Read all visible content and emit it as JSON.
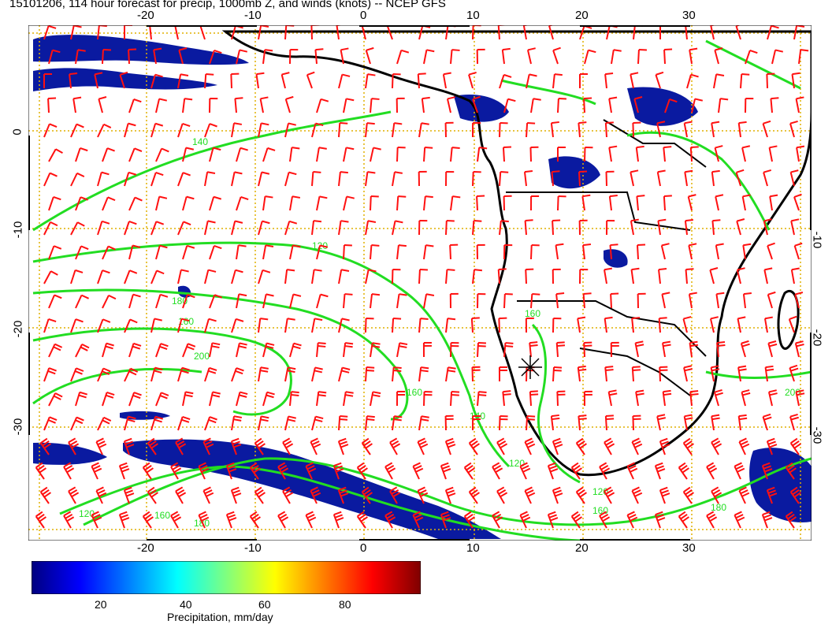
{
  "title": "15101206, 114 hour forecast for precip, 1000mb Z, and winds (knots) -- NCEP GFS",
  "map": {
    "lon_range": [
      -30,
      42
    ],
    "lat_range": [
      -40,
      10
    ],
    "top_ticks": [
      "-20",
      "-10",
      "0",
      "10",
      "20",
      "30"
    ],
    "bottom_ticks": [
      "-20",
      "-10",
      "0",
      "10",
      "20",
      "30"
    ],
    "left_ticks": [
      "0",
      "-10",
      "-20",
      "-30"
    ],
    "right_ticks": [
      "-10",
      "-20",
      "-30"
    ],
    "contour_labels": [
      "120",
      "140",
      "160",
      "180",
      "200",
      "160",
      "140",
      "120",
      "180",
      "160",
      "120",
      "160",
      "180",
      "200",
      "120",
      "160"
    ],
    "colors": {
      "frame": "#000000",
      "gridline": "#e0b000",
      "coast": "#000000",
      "contour": "#22dd22",
      "wind_barb": "#ff1010",
      "precip_low": "#00008b",
      "precip_mid": "#1a6fd0",
      "precip_high": "#20c8c0"
    }
  },
  "colorbar": {
    "ticks": [
      "20",
      "40",
      "60",
      "80"
    ],
    "title": "Precipitation, mm/day",
    "colors": [
      "#00007f",
      "#0000ff",
      "#007fff",
      "#00ffff",
      "#7fff7f",
      "#ffff00",
      "#ff7f00",
      "#ff0000",
      "#7f0000"
    ]
  }
}
